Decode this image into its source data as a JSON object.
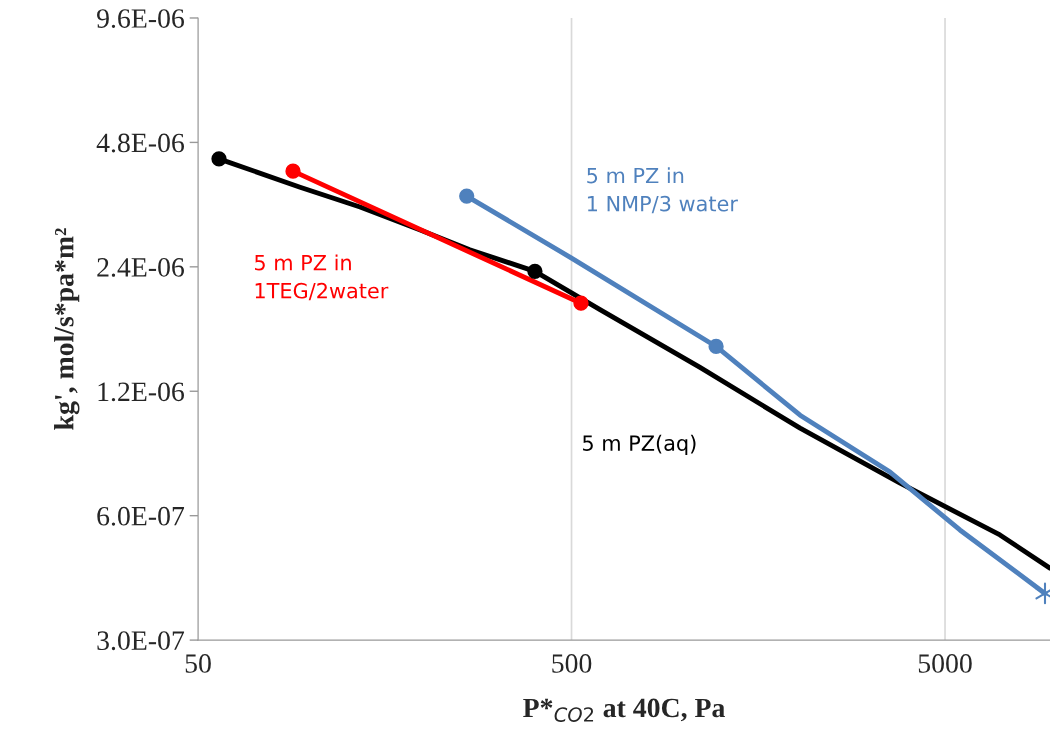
{
  "chart_data": {
    "type": "line",
    "xlabel": "P*$_{CO2}$ at 40C, Pa",
    "ylabel": "kg', mol/s*pa*m²",
    "log": "xy",
    "grid": "x",
    "legend": false,
    "xlim": [
      50,
      9550
    ],
    "xticks": [
      50,
      500,
      5000
    ],
    "ylim": [
      3e-07,
      9.6e-06
    ],
    "yticks": [
      {
        "value": 3e-07,
        "label": "3.0E-07"
      },
      {
        "value": 6e-07,
        "label": "6.0E-07"
      },
      {
        "value": 1.2e-06,
        "label": "1.2E-06"
      },
      {
        "value": 2.4e-06,
        "label": "2.4E-06"
      },
      {
        "value": 4.8e-06,
        "label": "4.8E-06"
      },
      {
        "value": 9.6e-06,
        "label": "9.6E-06"
      }
    ],
    "series": [
      {
        "name": "5 m PZ(aq)",
        "color": "#000000",
        "marker": "none",
        "x": [
          56.9,
          93.8,
          135.8,
          196,
          267,
          399,
          596,
          1104,
          2046,
          3790,
          7015,
          9550
        ],
        "values": [
          4.38e-06,
          3.74e-06,
          3.35e-06,
          2.95e-06,
          2.64e-06,
          2.34e-06,
          1.89e-06,
          1.37e-06,
          9.77e-07,
          7.19e-07,
          5.39e-07,
          4.48e-07
        ]
      },
      {
        "type": "scatter",
        "color": "#000000",
        "marker": "circle",
        "x": [
          56.9,
          399
        ],
        "values": [
          4.38e-06,
          2.34e-06
        ]
      },
      {
        "name": "5 m PZ in\n1TEG/2water",
        "color": "#ff0000",
        "marker": "circle",
        "x": [
          89.8,
          530
        ],
        "values": [
          4.09e-06,
          1.96e-06
        ]
      },
      {
        "name": "5 m PZ in\n1 NMP/3 water",
        "color": "#4f81bd",
        "marker": "none",
        "x": [
          262,
          500,
          1219,
          2046,
          3564,
          5480,
          9260
        ],
        "values": [
          3.56e-06,
          2.52e-06,
          1.54e-06,
          1.05e-06,
          7.65e-07,
          5.54e-07,
          3.89e-07
        ]
      },
      {
        "type": "scatter",
        "color": "#4f81bd",
        "marker": "circle",
        "x": [
          262,
          1219
        ],
        "values": [
          3.56e-06,
          1.54e-06
        ]
      },
      {
        "type": "scatter",
        "color": "#4f81bd",
        "marker": "cross",
        "x": [
          9260
        ],
        "values": [
          3.89e-07
        ]
      }
    ]
  }
}
